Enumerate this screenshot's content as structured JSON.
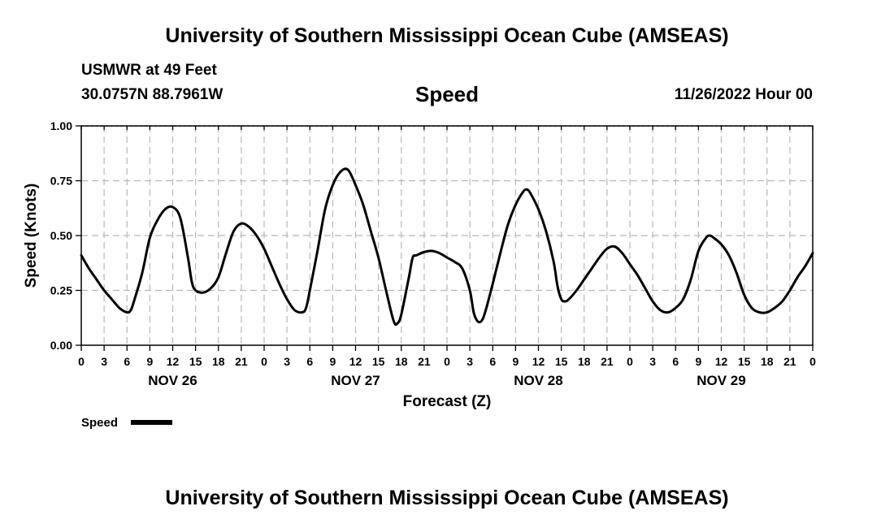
{
  "header": {
    "title": "University of Southern Mississippi Ocean Cube (AMSEAS)",
    "station": "USMWR at 49 Feet",
    "coords": "30.0757N  88.7961W",
    "parameter": "Speed",
    "datetime": "11/26/2022 Hour 00"
  },
  "footer": {
    "title": "University of Southern Mississippi Ocean Cube (AMSEAS)"
  },
  "chart_data": {
    "type": "line",
    "title": "Speed",
    "xlabel": "Forecast (Z)",
    "ylabel": "Speed (Knots)",
    "xlim": [
      0,
      96
    ],
    "ylim": [
      0,
      1.0
    ],
    "yticks": [
      0,
      0.25,
      0.5,
      0.75,
      1.0
    ],
    "ytick_labels": [
      "0.00",
      "0.25",
      "0.50",
      "0.75",
      "1.00"
    ],
    "xticks": [
      0,
      3,
      6,
      9,
      12,
      15,
      18,
      21,
      24,
      27,
      30,
      33,
      36,
      39,
      42,
      45,
      48,
      51,
      54,
      57,
      60,
      63,
      66,
      69,
      72,
      75,
      78,
      81,
      84,
      87,
      90,
      93,
      96
    ],
    "xtick_labels": [
      "0",
      "3",
      "6",
      "9",
      "12",
      "15",
      "18",
      "21",
      "0",
      "3",
      "6",
      "9",
      "12",
      "15",
      "18",
      "21",
      "0",
      "3",
      "6",
      "9",
      "12",
      "15",
      "18",
      "21",
      "0",
      "3",
      "6",
      "9",
      "12",
      "15",
      "18",
      "21",
      "0"
    ],
    "date_labels": [
      {
        "label": "NOV 26",
        "x": 12
      },
      {
        "label": "NOV 27",
        "x": 36
      },
      {
        "label": "NOV 28",
        "x": 60
      },
      {
        "label": "NOV 29",
        "x": 84
      }
    ],
    "grid": true,
    "legend": "bottom-left",
    "series": [
      {
        "name": "Speed",
        "color": "#000000",
        "points": [
          [
            0,
            0.41
          ],
          [
            1,
            0.35
          ],
          [
            2,
            0.3
          ],
          [
            3,
            0.25
          ],
          [
            4,
            0.21
          ],
          [
            5,
            0.17
          ],
          [
            6,
            0.15
          ],
          [
            6.5,
            0.16
          ],
          [
            7,
            0.21
          ],
          [
            8,
            0.33
          ],
          [
            9,
            0.49
          ],
          [
            10,
            0.57
          ],
          [
            11,
            0.62
          ],
          [
            12,
            0.63
          ],
          [
            13,
            0.58
          ],
          [
            14,
            0.4
          ],
          [
            14.5,
            0.29
          ],
          [
            15,
            0.25
          ],
          [
            16,
            0.24
          ],
          [
            17,
            0.26
          ],
          [
            18,
            0.31
          ],
          [
            19,
            0.42
          ],
          [
            20,
            0.52
          ],
          [
            21,
            0.555
          ],
          [
            22,
            0.54
          ],
          [
            23,
            0.5
          ],
          [
            24,
            0.44
          ],
          [
            25,
            0.36
          ],
          [
            26,
            0.28
          ],
          [
            27,
            0.21
          ],
          [
            28,
            0.16
          ],
          [
            29,
            0.15
          ],
          [
            29.5,
            0.17
          ],
          [
            30,
            0.25
          ],
          [
            31,
            0.43
          ],
          [
            32,
            0.62
          ],
          [
            33,
            0.73
          ],
          [
            34,
            0.79
          ],
          [
            35,
            0.8
          ],
          [
            36,
            0.73
          ],
          [
            37,
            0.64
          ],
          [
            38,
            0.52
          ],
          [
            39,
            0.4
          ],
          [
            40,
            0.25
          ],
          [
            41,
            0.11
          ],
          [
            41.5,
            0.1
          ],
          [
            42,
            0.14
          ],
          [
            43,
            0.31
          ],
          [
            43.5,
            0.4
          ],
          [
            44,
            0.41
          ],
          [
            45,
            0.425
          ],
          [
            46,
            0.43
          ],
          [
            47,
            0.42
          ],
          [
            48,
            0.4
          ],
          [
            49,
            0.38
          ],
          [
            50,
            0.35
          ],
          [
            51,
            0.25
          ],
          [
            51.5,
            0.15
          ],
          [
            52,
            0.11
          ],
          [
            52.5,
            0.11
          ],
          [
            53,
            0.15
          ],
          [
            54,
            0.28
          ],
          [
            55,
            0.42
          ],
          [
            56,
            0.55
          ],
          [
            57,
            0.64
          ],
          [
            58,
            0.7
          ],
          [
            58.5,
            0.71
          ],
          [
            59,
            0.69
          ],
          [
            60,
            0.62
          ],
          [
            61,
            0.52
          ],
          [
            62,
            0.38
          ],
          [
            62.5,
            0.27
          ],
          [
            63,
            0.21
          ],
          [
            63.5,
            0.2
          ],
          [
            64,
            0.21
          ],
          [
            65,
            0.25
          ],
          [
            66,
            0.3
          ],
          [
            67,
            0.35
          ],
          [
            68,
            0.4
          ],
          [
            69,
            0.44
          ],
          [
            70,
            0.45
          ],
          [
            71,
            0.42
          ],
          [
            72,
            0.37
          ],
          [
            73,
            0.32
          ],
          [
            74,
            0.26
          ],
          [
            75,
            0.2
          ],
          [
            76,
            0.16
          ],
          [
            77,
            0.15
          ],
          [
            78,
            0.17
          ],
          [
            79,
            0.21
          ],
          [
            80,
            0.3
          ],
          [
            81,
            0.43
          ],
          [
            82,
            0.49
          ],
          [
            82.5,
            0.5
          ],
          [
            83,
            0.49
          ],
          [
            84,
            0.46
          ],
          [
            85,
            0.41
          ],
          [
            86,
            0.33
          ],
          [
            87,
            0.23
          ],
          [
            88,
            0.17
          ],
          [
            89,
            0.15
          ],
          [
            90,
            0.15
          ],
          [
            91,
            0.17
          ],
          [
            92,
            0.2
          ],
          [
            93,
            0.25
          ],
          [
            94,
            0.31
          ],
          [
            95,
            0.36
          ],
          [
            96,
            0.42
          ]
        ]
      }
    ]
  }
}
